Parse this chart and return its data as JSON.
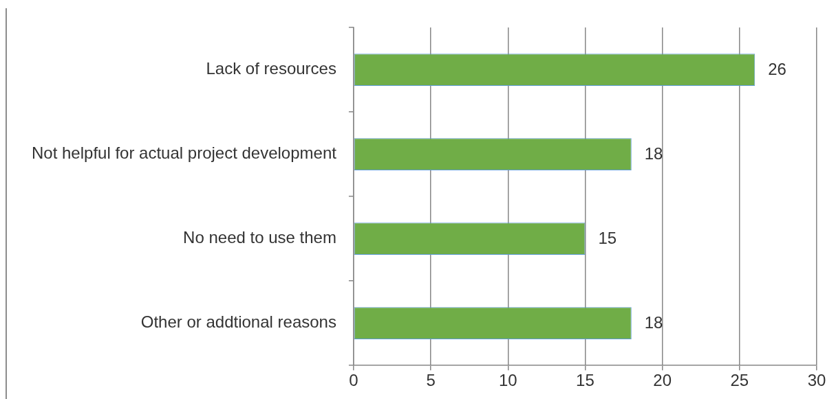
{
  "chart_data": {
    "type": "bar",
    "orientation": "horizontal",
    "categories": [
      "Lack of resources",
      "Not helpful for actual project development",
      "No need to use them",
      "Other or addtional reasons"
    ],
    "values": [
      26,
      18,
      15,
      18
    ],
    "color": "#70ad47",
    "xlim": [
      0,
      30
    ],
    "xticks": [
      0,
      5,
      10,
      15,
      20,
      25,
      30
    ],
    "grid": "x",
    "data_labels": true
  }
}
